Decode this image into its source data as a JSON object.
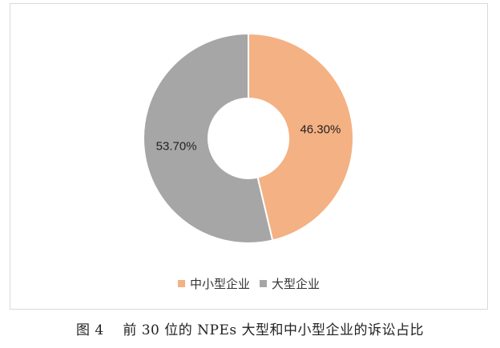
{
  "chart_data": {
    "type": "pie",
    "donut": true,
    "categories": [
      "中小型企业",
      "大型企业"
    ],
    "values": [
      46.3,
      53.7
    ],
    "data_labels": [
      "46.30%",
      "53.70%"
    ],
    "colors": [
      "#F4B183",
      "#A6A6A6"
    ],
    "legend_position": "bottom",
    "title": "",
    "xlabel": "",
    "ylabel": ""
  },
  "legend": {
    "items": [
      {
        "label": "中小型企业",
        "color": "#F4B183"
      },
      {
        "label": "大型企业",
        "color": "#A6A6A6"
      }
    ]
  },
  "caption": {
    "figure_number": "图 4",
    "text": "前 30 位的 NPEs 大型和中小型企业的诉讼占比"
  }
}
